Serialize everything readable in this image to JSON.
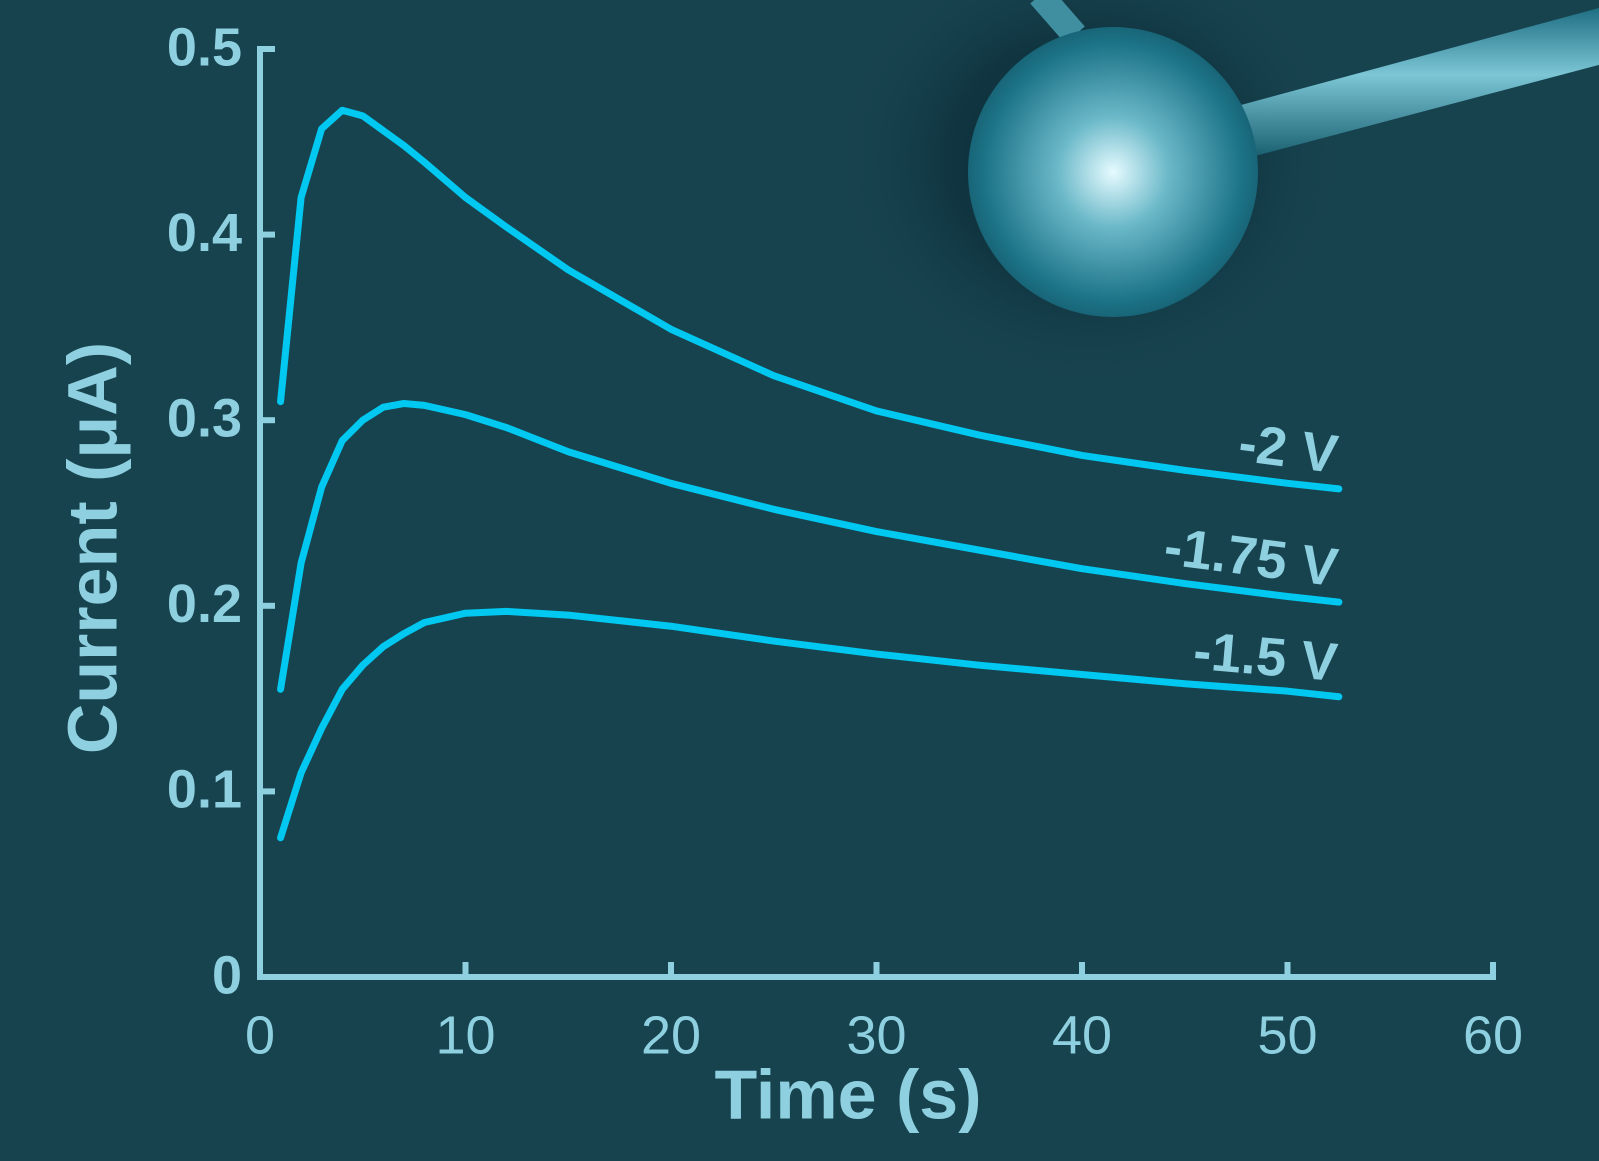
{
  "chart_data": {
    "type": "line",
    "xlabel": "Time (s)",
    "ylabel": "Current (μA)",
    "x": [
      1,
      2,
      3,
      4,
      5,
      6,
      7,
      8,
      10,
      12,
      15,
      20,
      25,
      30,
      35,
      40,
      45,
      50,
      52.5
    ],
    "series": [
      {
        "name": "-2 V",
        "color": "#00c8f0",
        "values": [
          0.31,
          0.42,
          0.457,
          0.467,
          0.464,
          0.456,
          0.448,
          0.439,
          0.42,
          0.404,
          0.381,
          0.349,
          0.324,
          0.305,
          0.292,
          0.281,
          0.273,
          0.266,
          0.263
        ]
      },
      {
        "name": "-1.75 V",
        "color": "#00c8f0",
        "values": [
          0.155,
          0.223,
          0.264,
          0.289,
          0.3,
          0.307,
          0.309,
          0.308,
          0.303,
          0.296,
          0.283,
          0.266,
          0.252,
          0.24,
          0.23,
          0.22,
          0.212,
          0.205,
          0.202
        ]
      },
      {
        "name": "-1.5 V",
        "color": "#00c8f0",
        "values": [
          0.075,
          0.11,
          0.134,
          0.155,
          0.168,
          0.178,
          0.185,
          0.191,
          0.196,
          0.197,
          0.195,
          0.189,
          0.181,
          0.174,
          0.168,
          0.163,
          0.158,
          0.154,
          0.151
        ]
      }
    ],
    "xlim": [
      0,
      60
    ],
    "xticks": [
      0,
      10,
      20,
      30,
      40,
      50,
      60
    ],
    "ylim": [
      0,
      0.5
    ],
    "yticks": [
      0,
      0.1,
      0.2,
      0.3,
      0.4,
      0.5
    ],
    "grid": false
  }
}
